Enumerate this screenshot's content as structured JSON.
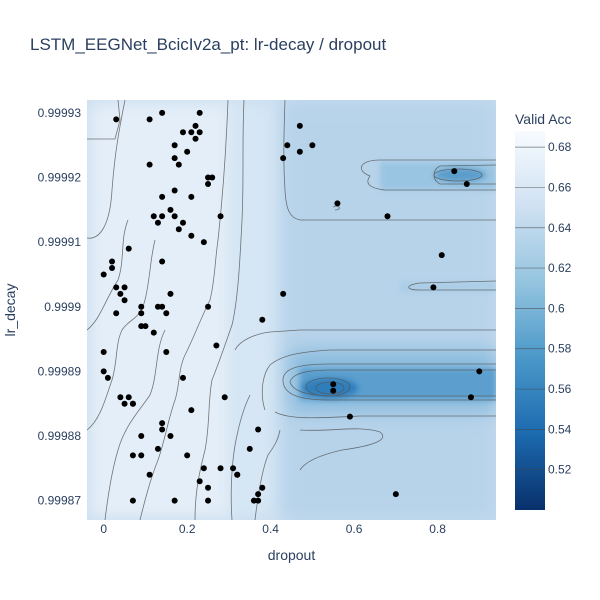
{
  "chart_data": {
    "type": "contour",
    "title": "LSTM_EEGNet_BcicIv2a_pt: lr-decay / dropout",
    "xlabel": "dropout",
    "ylabel": "lr_decay",
    "xlim": [
      -0.04,
      0.94
    ],
    "ylim": [
      0.999867,
      0.999932
    ],
    "x_ticks": [
      0,
      0.2,
      0.4,
      0.6,
      0.8
    ],
    "x_tick_labels": [
      "0",
      "0.2",
      "0.4",
      "0.6",
      "0.8"
    ],
    "y_ticks": [
      0.99987,
      0.99988,
      0.99989,
      0.9999,
      0.99991,
      0.99992,
      0.99993
    ],
    "y_tick_labels": [
      "0.99987",
      "0.99988",
      "0.99989",
      "0.9999",
      "0.99991",
      "0.99992",
      "0.99993"
    ],
    "colorbar": {
      "title": "Valid Acc",
      "range": [
        0.5,
        0.688
      ],
      "ticks": [
        0.52,
        0.54,
        0.56,
        0.58,
        0.6,
        0.62,
        0.64,
        0.66,
        0.68
      ],
      "tick_labels": [
        "0.52",
        "0.54",
        "0.56",
        "0.58",
        "0.6",
        "0.62",
        "0.64",
        "0.66",
        "0.68"
      ]
    },
    "colors": {
      "high": "#f7fbff",
      "mid": "#9ecae1",
      "low": "#08306b",
      "points": "#000000",
      "contour_lines": "#444444"
    },
    "trials": [
      [
        0.03,
        0.999929
      ],
      [
        0.14,
        0.99993
      ],
      [
        0.23,
        0.99993
      ],
      [
        0.11,
        0.999929
      ],
      [
        0.19,
        0.999927
      ],
      [
        0.21,
        0.999927
      ],
      [
        0.22,
        0.999928
      ],
      [
        0.23,
        0.999927
      ],
      [
        0.22,
        0.999926
      ],
      [
        0.17,
        0.999925
      ],
      [
        0.2,
        0.999924
      ],
      [
        0.17,
        0.999923
      ],
      [
        0.18,
        0.999922
      ],
      [
        0.11,
        0.999922
      ],
      [
        0.25,
        0.999919
      ],
      [
        0.26,
        0.99992
      ],
      [
        0.25,
        0.99992
      ],
      [
        0.17,
        0.999918
      ],
      [
        0.14,
        0.999917
      ],
      [
        0.21,
        0.999917
      ],
      [
        0.16,
        0.999915
      ],
      [
        0.17,
        0.999914
      ],
      [
        0.12,
        0.999914
      ],
      [
        0.14,
        0.999914
      ],
      [
        0.13,
        0.999913
      ],
      [
        0.19,
        0.999913
      ],
      [
        0.28,
        0.999914
      ],
      [
        0.18,
        0.999912
      ],
      [
        0.21,
        0.999911
      ],
      [
        0.24,
        0.99991
      ],
      [
        0.06,
        0.999909
      ],
      [
        0.02,
        0.999907
      ],
      [
        0.14,
        0.999907
      ],
      [
        0.02,
        0.999906
      ],
      [
        0.0,
        0.999905
      ],
      [
        0.03,
        0.999903
      ],
      [
        0.05,
        0.999903
      ],
      [
        0.04,
        0.999902
      ],
      [
        0.05,
        0.999901
      ],
      [
        0.16,
        0.999902
      ],
      [
        0.14,
        0.9999
      ],
      [
        0.13,
        0.9999
      ],
      [
        0.09,
        0.9999
      ],
      [
        0.25,
        0.9999
      ],
      [
        0.03,
        0.999899
      ],
      [
        0.09,
        0.999899
      ],
      [
        0.15,
        0.999899
      ],
      [
        0.1,
        0.999897
      ],
      [
        0.09,
        0.999897
      ],
      [
        0.12,
        0.999896
      ],
      [
        0.27,
        0.999894
      ],
      [
        0.38,
        0.999898
      ],
      [
        0.0,
        0.999893
      ],
      [
        0.15,
        0.999893
      ],
      [
        0.0,
        0.99989
      ],
      [
        0.01,
        0.999889
      ],
      [
        0.19,
        0.999889
      ],
      [
        0.04,
        0.999886
      ],
      [
        0.06,
        0.999886
      ],
      [
        0.05,
        0.999885
      ],
      [
        0.07,
        0.999885
      ],
      [
        0.07,
        0.999885
      ],
      [
        0.29,
        0.999886
      ],
      [
        0.21,
        0.999884
      ],
      [
        0.14,
        0.999882
      ],
      [
        0.14,
        0.999881
      ],
      [
        0.16,
        0.99988
      ],
      [
        0.09,
        0.99988
      ],
      [
        0.13,
        0.999878
      ],
      [
        0.07,
        0.999877
      ],
      [
        0.09,
        0.999877
      ],
      [
        0.2,
        0.999877
      ],
      [
        0.24,
        0.999875
      ],
      [
        0.28,
        0.999875
      ],
      [
        0.31,
        0.999875
      ],
      [
        0.32,
        0.999874
      ],
      [
        0.32,
        0.999874
      ],
      [
        0.23,
        0.999873
      ],
      [
        0.11,
        0.999874
      ],
      [
        0.35,
        0.999878
      ],
      [
        0.37,
        0.999881
      ],
      [
        0.38,
        0.999872
      ],
      [
        0.37,
        0.999871
      ],
      [
        0.36,
        0.99987
      ],
      [
        0.37,
        0.99987
      ],
      [
        0.25,
        0.999872
      ],
      [
        0.25,
        0.99987
      ],
      [
        0.17,
        0.99987
      ],
      [
        0.07,
        0.99987
      ],
      [
        0.47,
        0.999928
      ],
      [
        0.5,
        0.999925
      ],
      [
        0.44,
        0.999925
      ],
      [
        0.47,
        0.999924
      ],
      [
        0.43,
        0.999923
      ],
      [
        0.56,
        0.999916
      ],
      [
        0.68,
        0.999914
      ],
      [
        0.84,
        0.999921
      ],
      [
        0.87,
        0.999919
      ],
      [
        0.81,
        0.999908
      ],
      [
        0.79,
        0.999903
      ],
      [
        0.43,
        0.999902
      ],
      [
        0.55,
        0.999888
      ],
      [
        0.55,
        0.999887
      ],
      [
        0.59,
        0.999883
      ],
      [
        0.9,
        0.99989
      ],
      [
        0.88,
        0.999886
      ],
      [
        0.7,
        0.999871
      ]
    ]
  }
}
